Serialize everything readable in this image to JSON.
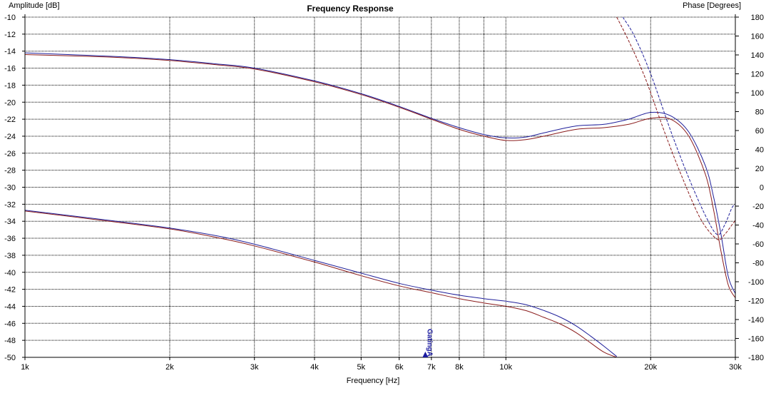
{
  "chart_data": {
    "type": "line",
    "title": "Frequency Response",
    "xlabel": "Frequency [Hz]",
    "ylabel_left": "Amplitude [dB]",
    "ylabel_right": "Phase [Degrees]",
    "x_scale": "log",
    "xlim": [
      1000,
      30000
    ],
    "ylim_left": [
      -50,
      -10
    ],
    "ylim_right": [
      -180,
      180
    ],
    "grid": true,
    "x_ticks": [
      {
        "value": 1000,
        "label": "1k"
      },
      {
        "value": 2000,
        "label": "2k"
      },
      {
        "value": 3000,
        "label": "3k"
      },
      {
        "value": 4000,
        "label": "4k"
      },
      {
        "value": 5000,
        "label": "5k"
      },
      {
        "value": 6000,
        "label": "6k"
      },
      {
        "value": 7000,
        "label": "7k"
      },
      {
        "value": 8000,
        "label": "8k"
      },
      {
        "value": 10000,
        "label": "10k"
      },
      {
        "value": 20000,
        "label": "20k"
      },
      {
        "value": 30000,
        "label": "30k"
      }
    ],
    "x_minor_grid": [
      9000
    ],
    "y_left_ticks": [
      -10,
      -12,
      -14,
      -16,
      -18,
      -20,
      -22,
      -24,
      -26,
      -28,
      -30,
      -32,
      -34,
      -36,
      -38,
      -40,
      -42,
      -44,
      -46,
      -48,
      -50
    ],
    "y_right_ticks": [
      180,
      160,
      140,
      120,
      100,
      80,
      60,
      40,
      20,
      0,
      -20,
      -40,
      -60,
      -80,
      -100,
      -120,
      -140,
      -160,
      -180
    ],
    "marker": {
      "label": "GatingA",
      "x": 6800,
      "color": "#1a1aa0"
    },
    "series": [
      {
        "axis": "left",
        "color": "#1f1f9a",
        "style": "solid",
        "x": [
          1000,
          1500,
          2000,
          2500,
          3000,
          4000,
          5000,
          6000,
          7000,
          8000,
          9000,
          10000,
          11000,
          12000,
          14000,
          16000,
          18000,
          20000,
          22000,
          24000,
          26000,
          27000,
          28000,
          29000,
          30000
        ],
        "y": [
          -14.2,
          -14.6,
          -15.0,
          -15.5,
          -16.0,
          -17.5,
          -19.0,
          -20.5,
          -21.9,
          -23.0,
          -23.8,
          -24.2,
          -24.1,
          -23.6,
          -22.8,
          -22.6,
          -22.0,
          -21.2,
          -21.6,
          -23.5,
          -27.5,
          -31.0,
          -35.5,
          -40.5,
          -42.5
        ]
      },
      {
        "axis": "left",
        "color": "#8a1b1b",
        "style": "solid",
        "x": [
          1000,
          1500,
          2000,
          2500,
          3000,
          4000,
          5000,
          6000,
          7000,
          8000,
          9000,
          10000,
          11000,
          12000,
          14000,
          16000,
          18000,
          20000,
          22000,
          24000,
          26000,
          27000,
          28000,
          29000,
          30000
        ],
        "y": [
          -14.4,
          -14.7,
          -15.1,
          -15.6,
          -16.1,
          -17.6,
          -19.1,
          -20.6,
          -22.0,
          -23.2,
          -24.0,
          -24.5,
          -24.4,
          -24.0,
          -23.2,
          -23.0,
          -22.6,
          -21.9,
          -22.0,
          -24.0,
          -28.5,
          -32.5,
          -37.5,
          -41.5,
          -43.0
        ]
      },
      {
        "axis": "left",
        "color": "#1f1f9a",
        "style": "solid",
        "x": [
          1000,
          1500,
          2000,
          2500,
          3000,
          4000,
          5000,
          6000,
          7000,
          8000,
          9000,
          10000,
          11000,
          12000,
          13000,
          14000,
          15000,
          16000,
          17000
        ],
        "y": [
          -32.7,
          -33.9,
          -34.8,
          -35.7,
          -36.7,
          -38.6,
          -40.1,
          -41.3,
          -42.1,
          -42.7,
          -43.1,
          -43.4,
          -43.8,
          -44.5,
          -45.3,
          -46.3,
          -47.5,
          -48.7,
          -49.9
        ]
      },
      {
        "axis": "left",
        "color": "#8a1b1b",
        "style": "solid",
        "x": [
          1000,
          1500,
          2000,
          2500,
          3000,
          4000,
          5000,
          6000,
          7000,
          8000,
          9000,
          10000,
          11000,
          12000,
          13000,
          14000,
          15000,
          16000,
          17000
        ],
        "y": [
          -32.8,
          -34.0,
          -34.9,
          -35.9,
          -36.9,
          -38.8,
          -40.4,
          -41.6,
          -42.4,
          -43.1,
          -43.6,
          -44.0,
          -44.5,
          -45.3,
          -46.1,
          -47.1,
          -48.3,
          -49.4,
          -50.0
        ]
      },
      {
        "axis": "right",
        "color": "#1f1f9a",
        "style": "dashed",
        "x": [
          17500,
          18500,
          20000,
          22000,
          24000,
          26000,
          27500,
          28500,
          29500,
          30000
        ],
        "y": [
          180,
          160,
          120,
          60,
          10,
          -30,
          -50,
          -40,
          -22,
          -18
        ]
      },
      {
        "axis": "right",
        "color": "#8a1b1b",
        "style": "dashed",
        "x": [
          17000,
          18000,
          19500,
          21500,
          23500,
          25500,
          27500,
          28500,
          29500,
          30000
        ],
        "y": [
          180,
          155,
          115,
          55,
          5,
          -35,
          -55,
          -50,
          -40,
          -35
        ]
      }
    ]
  }
}
